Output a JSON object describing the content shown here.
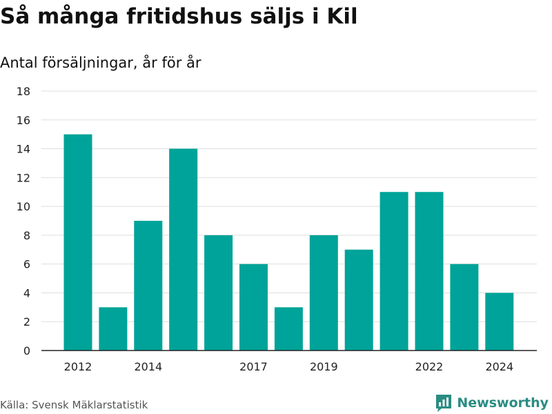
{
  "header": {
    "title": "Så många fritidshus säljs i Kil",
    "subtitle": "Antal försäljningar, år för år"
  },
  "footer": {
    "source": "Källa: Svensk Mäklarstatistik",
    "brand": "Newsworthy"
  },
  "colors": {
    "bar": "#00a399",
    "grid": "#dddddd",
    "axis": "#222222",
    "brand": "#2a8c82"
  },
  "chart_data": {
    "type": "bar",
    "categories": [
      "2012",
      "2013",
      "2014",
      "2015",
      "2016",
      "2017",
      "2018",
      "2019",
      "2020",
      "2021",
      "2022",
      "2023",
      "2024"
    ],
    "values": [
      15,
      3,
      9,
      14,
      8,
      6,
      3,
      8,
      7,
      11,
      11,
      6,
      4
    ],
    "x_tick_labels": [
      "2012",
      "2014",
      "2017",
      "2019",
      "2022",
      "2024"
    ],
    "y_ticks": [
      0,
      2,
      4,
      6,
      8,
      10,
      12,
      14,
      16,
      18
    ],
    "ylim": [
      0,
      18
    ],
    "grid": true,
    "legend": "none",
    "title": "Så många fritidshus säljs i Kil",
    "subtitle": "Antal försäljningar, år för år"
  }
}
